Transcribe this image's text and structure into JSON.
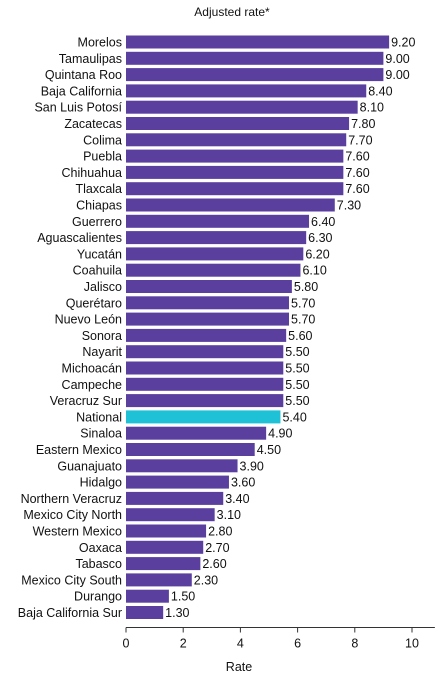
{
  "chart_data": {
    "type": "bar",
    "orientation": "horizontal",
    "title": "Adjusted rate*",
    "xlabel": "Rate",
    "ylabel": "",
    "xlim": [
      0,
      10.8
    ],
    "xticks": [
      0,
      2,
      4,
      6,
      8,
      10
    ],
    "grid": false,
    "categories": [
      "Morelos",
      "Tamaulipas",
      "Quintana Roo",
      "Baja California",
      "San Luis Potosí",
      "Zacatecas",
      "Colima",
      "Puebla",
      "Chihuahua",
      "Tlaxcala",
      "Chiapas",
      "Guerrero",
      "Aguascalientes",
      "Yucatán",
      "Coahuila",
      "Jalisco",
      "Querétaro",
      "Nuevo León",
      "Sonora",
      "Nayarit",
      "Michoacán",
      "Campeche",
      "Veracruz Sur",
      "National",
      "Sinaloa",
      "Eastern Mexico",
      "Guanajuato",
      "Hidalgo",
      "Northern Veracruz",
      "Mexico City North",
      "Western Mexico",
      "Oaxaca",
      "Tabasco",
      "Mexico City South",
      "Durango",
      "Baja California Sur"
    ],
    "values": [
      9.2,
      9.0,
      9.0,
      8.4,
      8.1,
      7.8,
      7.7,
      7.6,
      7.6,
      7.6,
      7.3,
      6.4,
      6.3,
      6.2,
      6.1,
      5.8,
      5.7,
      5.7,
      5.6,
      5.5,
      5.5,
      5.5,
      5.5,
      5.4,
      4.9,
      4.5,
      3.9,
      3.6,
      3.4,
      3.1,
      2.8,
      2.7,
      2.6,
      2.3,
      1.5,
      1.3
    ],
    "value_labels": [
      "9.20",
      "9.00",
      "9.00",
      "8.40",
      "8.10",
      "7.80",
      "7.70",
      "7.60",
      "7.60",
      "7.60",
      "7.30",
      "6.40",
      "6.30",
      "6.20",
      "6.10",
      "5.80",
      "5.70",
      "5.70",
      "5.60",
      "5.50",
      "5.50",
      "5.50",
      "5.50",
      "5.40",
      "4.90",
      "4.50",
      "3.90",
      "3.60",
      "3.40",
      "3.10",
      "2.80",
      "2.70",
      "2.60",
      "2.30",
      "1.50",
      "1.30"
    ],
    "highlight_category": "National",
    "colors": {
      "bar": "#5a3f9f",
      "highlight": "#1ec1d6",
      "axis": "#333333",
      "text": "#111111"
    }
  }
}
